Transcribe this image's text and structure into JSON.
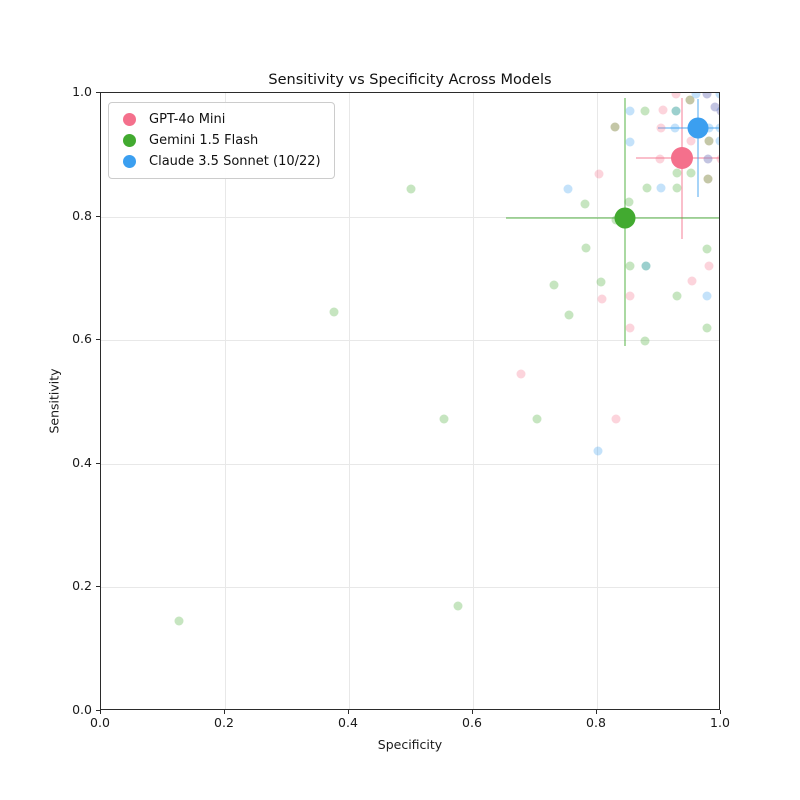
{
  "title": "Sensitivity vs Specificity Across Models",
  "legend": [
    {
      "label": "GPT-4o Mini",
      "color": "#f4708c"
    },
    {
      "label": "Gemini 1.5 Flash",
      "color": "#42aa30"
    },
    {
      "label": "Claude 3.5 Sonnet (10/22)",
      "color": "#3b9ff0"
    }
  ],
  "chart_data": {
    "type": "scatter",
    "title": "Sensitivity vs Specificity Across Models",
    "xlabel": "Specificity",
    "ylabel": "Sensitivity",
    "xlim": [
      0.0,
      1.0
    ],
    "ylim": [
      0.0,
      1.0
    ],
    "xticks": [
      "0.0",
      "0.2",
      "0.4",
      "0.6",
      "0.8",
      "1.0"
    ],
    "yticks": [
      "0.0",
      "0.2",
      "0.4",
      "0.6",
      "0.8",
      "1.0"
    ],
    "grid": true,
    "legend_position": "upper left",
    "point_opacity": 0.3,
    "errorbar_opacity": 0.45,
    "point_size": 9,
    "series": [
      {
        "name": "GPT-4o Mini",
        "color": "#f4708c",
        "mean": {
          "x": 0.937,
          "y": 0.895,
          "size": 22,
          "x_err": [
            0.863,
            1.0
          ],
          "y_err": [
            0.763,
            0.992
          ]
        },
        "points": [
          [
            0.928,
            0.998
          ],
          [
            0.906,
            0.972
          ],
          [
            0.904,
            0.944
          ],
          [
            0.952,
            0.922
          ],
          [
            0.902,
            0.894
          ],
          [
            1.0,
            0.894
          ],
          [
            0.803,
            0.869
          ],
          [
            0.98,
            0.72
          ],
          [
            0.954,
            0.695
          ],
          [
            0.854,
            0.671
          ],
          [
            0.808,
            0.667
          ],
          [
            0.854,
            0.62
          ],
          [
            0.678,
            0.545
          ],
          [
            0.83,
            0.472
          ],
          [
            0.829,
            0.945
          ],
          [
            0.98,
            0.922
          ],
          [
            0.95,
            0.988
          ],
          [
            0.979,
            0.861
          ],
          [
            0.977,
            0.998
          ],
          [
            0.99,
            0.978
          ],
          [
            0.979,
            0.894
          ],
          [
            1.0,
            0.971
          ]
        ]
      },
      {
        "name": "Gemini 1.5 Flash",
        "color": "#42aa30",
        "mean": {
          "x": 0.845,
          "y": 0.798,
          "size": 21,
          "x_err": [
            0.653,
            1.0
          ],
          "y_err": [
            0.591,
            0.992
          ]
        },
        "points": [
          [
            0.5,
            0.845
          ],
          [
            0.375,
            0.645
          ],
          [
            0.125,
            0.145
          ],
          [
            0.575,
            0.17
          ],
          [
            0.553,
            0.472
          ],
          [
            0.703,
            0.472
          ],
          [
            0.878,
            0.971
          ],
          [
            0.88,
            0.846
          ],
          [
            0.929,
            0.846
          ],
          [
            0.929,
            0.87
          ],
          [
            0.952,
            0.87
          ],
          [
            0.781,
            0.82
          ],
          [
            0.852,
            0.824
          ],
          [
            0.831,
            0.794
          ],
          [
            0.782,
            0.75
          ],
          [
            0.978,
            0.747
          ],
          [
            0.73,
            0.69
          ],
          [
            0.807,
            0.694
          ],
          [
            0.853,
            0.72
          ],
          [
            0.929,
            0.671
          ],
          [
            0.755,
            0.641
          ],
          [
            0.978,
            0.62
          ],
          [
            0.877,
            0.598
          ],
          [
            0.829,
            0.945
          ],
          [
            0.98,
            0.922
          ],
          [
            0.95,
            0.988
          ],
          [
            0.979,
            0.861
          ],
          [
            0.879,
            0.72
          ],
          [
            0.928,
            0.971
          ]
        ]
      },
      {
        "name": "Claude 3.5 Sonnet (10/22)",
        "color": "#3b9ff0",
        "mean": {
          "x": 0.963,
          "y": 0.943,
          "size": 21,
          "x_err": [
            0.898,
            1.0
          ],
          "y_err": [
            0.831,
            0.991
          ]
        },
        "points": [
          [
            0.853,
            0.971
          ],
          [
            0.854,
            0.92
          ],
          [
            0.754,
            0.845
          ],
          [
            0.904,
            0.846
          ],
          [
            0.925,
            0.944
          ],
          [
            0.98,
            0.944
          ],
          [
            0.998,
            0.944
          ],
          [
            0.978,
            0.671
          ],
          [
            0.802,
            0.42
          ],
          [
            0.96,
            0.998
          ],
          [
            0.998,
            0.998
          ],
          [
            0.998,
            0.922
          ],
          [
            0.977,
            0.998
          ],
          [
            0.99,
            0.978
          ],
          [
            0.979,
            0.894
          ],
          [
            1.0,
            0.971
          ],
          [
            0.879,
            0.72
          ],
          [
            0.928,
            0.971
          ]
        ]
      }
    ]
  }
}
